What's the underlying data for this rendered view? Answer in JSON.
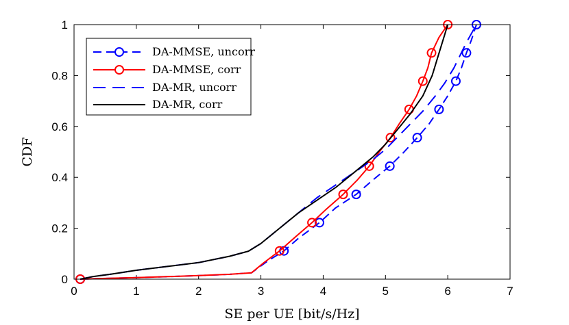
{
  "chart_data": {
    "type": "line",
    "title": "",
    "xlabel": "SE per UE [bit/s/Hz]",
    "ylabel": "CDF",
    "xlim": [
      0,
      7
    ],
    "ylim": [
      0,
      1
    ],
    "xticks": [
      0,
      1,
      2,
      3,
      4,
      5,
      6,
      7
    ],
    "yticks": [
      0,
      0.2,
      0.4,
      0.6,
      0.8,
      1
    ],
    "xtick_labels": [
      "0",
      "1",
      "2",
      "3",
      "4",
      "5",
      "6",
      "7"
    ],
    "ytick_labels": [
      "0",
      "0.2",
      "0.4",
      "0.6",
      "0.8",
      "1"
    ],
    "grid": false,
    "legend_position": "top-left",
    "series": [
      {
        "name": "DA-MMSE, uncorr",
        "color": "#0000ff",
        "dash": "dashed",
        "marker": "circle",
        "x": [
          0.1,
          0.5,
          1.0,
          1.5,
          2.0,
          2.5,
          2.85,
          3.1,
          3.37,
          3.6,
          3.94,
          4.2,
          4.53,
          4.8,
          5.07,
          5.3,
          5.51,
          5.7,
          5.86,
          6.0,
          6.13,
          6.22,
          6.3,
          6.38,
          6.46
        ],
        "y": [
          0.0,
          0.003,
          0.006,
          0.01,
          0.014,
          0.019,
          0.025,
          0.07,
          0.111,
          0.16,
          0.222,
          0.28,
          0.333,
          0.39,
          0.444,
          0.5,
          0.556,
          0.61,
          0.667,
          0.72,
          0.778,
          0.83,
          0.889,
          0.94,
          1.0
        ],
        "markers_x": [
          0.1,
          3.37,
          3.94,
          4.53,
          5.07,
          5.51,
          5.86,
          6.13,
          6.3,
          6.46
        ],
        "markers_y": [
          0.0,
          0.111,
          0.222,
          0.333,
          0.444,
          0.556,
          0.667,
          0.778,
          0.889,
          1.0
        ]
      },
      {
        "name": "DA-MMSE, corr",
        "color": "#ff0000",
        "dash": "solid",
        "marker": "circle",
        "x": [
          0.1,
          0.5,
          1.0,
          1.5,
          2.0,
          2.5,
          2.85,
          3.05,
          3.3,
          3.55,
          3.82,
          4.05,
          4.32,
          4.55,
          4.74,
          4.9,
          5.08,
          5.22,
          5.38,
          5.5,
          5.6,
          5.68,
          5.74,
          5.86,
          6.0
        ],
        "y": [
          0.0,
          0.003,
          0.006,
          0.01,
          0.014,
          0.019,
          0.025,
          0.065,
          0.111,
          0.165,
          0.222,
          0.275,
          0.333,
          0.39,
          0.444,
          0.5,
          0.556,
          0.61,
          0.667,
          0.72,
          0.778,
          0.83,
          0.889,
          0.95,
          1.0
        ],
        "markers_x": [
          0.1,
          3.3,
          3.82,
          4.32,
          4.74,
          5.08,
          5.38,
          5.6,
          5.74,
          6.0
        ],
        "markers_y": [
          0.0,
          0.111,
          0.222,
          0.333,
          0.444,
          0.556,
          0.667,
          0.778,
          0.889,
          1.0
        ]
      },
      {
        "name": "DA-MR, uncorr",
        "color": "#0000ff",
        "dash": "longdash",
        "marker": "none",
        "x": [
          0.1,
          0.3,
          0.6,
          1.0,
          1.5,
          2.0,
          2.5,
          2.8,
          3.0,
          3.3,
          3.6,
          3.9,
          4.2,
          4.5,
          4.8,
          5.0,
          5.2,
          5.4,
          5.6,
          5.8,
          5.95,
          6.1,
          6.2,
          6.3,
          6.46
        ],
        "y": [
          0.0,
          0.01,
          0.02,
          0.035,
          0.05,
          0.065,
          0.09,
          0.11,
          0.14,
          0.2,
          0.26,
          0.32,
          0.37,
          0.42,
          0.47,
          0.51,
          0.56,
          0.61,
          0.66,
          0.72,
          0.77,
          0.83,
          0.88,
          0.93,
          1.0
        ]
      },
      {
        "name": "DA-MR, corr",
        "color": "#000000",
        "dash": "solid",
        "marker": "none",
        "x": [
          0.1,
          0.3,
          0.6,
          1.0,
          1.5,
          2.0,
          2.5,
          2.8,
          3.0,
          3.3,
          3.6,
          3.9,
          4.2,
          4.5,
          4.8,
          5.0,
          5.2,
          5.4,
          5.6,
          5.75,
          5.85,
          5.95,
          6.0
        ],
        "y": [
          0.0,
          0.01,
          0.02,
          0.035,
          0.05,
          0.065,
          0.09,
          0.11,
          0.14,
          0.2,
          0.26,
          0.31,
          0.36,
          0.42,
          0.48,
          0.53,
          0.59,
          0.65,
          0.72,
          0.8,
          0.88,
          0.96,
          1.0
        ]
      }
    ]
  }
}
